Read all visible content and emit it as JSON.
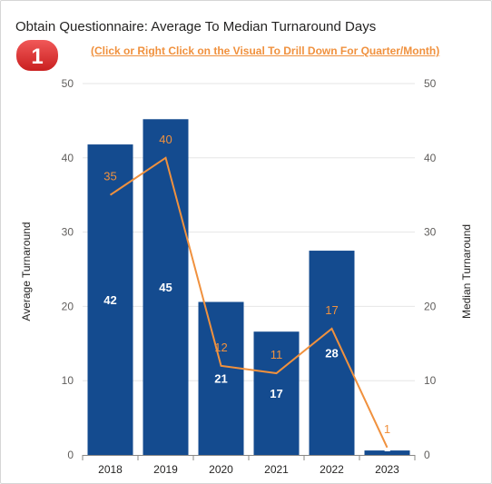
{
  "title": "Obtain Questionnaire: Average To Median Turnaround Days",
  "drill_link": "(Click or Right Click on the Visual To Drill Down For Quarter/Month)",
  "badge": "1",
  "colors": {
    "bar": "#144b8f",
    "line": "#f0913e",
    "badge": "#e02b2b",
    "grid": "#e6e6e6"
  },
  "chart_data": {
    "type": "bar",
    "categories": [
      "2018",
      "2019",
      "2020",
      "2021",
      "2022",
      "2023"
    ],
    "series": [
      {
        "name": "Average Turnaround",
        "type": "bar",
        "axis": "left",
        "values": [
          41.8,
          45.2,
          20.6,
          16.6,
          27.5,
          0.6
        ],
        "labels": [
          "42",
          "45",
          "21",
          "17",
          "28",
          "1"
        ]
      },
      {
        "name": "Median Turnaround",
        "type": "line",
        "axis": "right",
        "values": [
          35,
          40,
          12,
          11,
          17,
          1
        ],
        "labels": [
          "35",
          "40",
          "12",
          "11",
          "17",
          "1"
        ]
      }
    ],
    "ylabel": "Average Turnaround",
    "y2label": "Median Turnaround",
    "ylim": [
      0,
      50
    ],
    "y2lim": [
      0,
      50
    ],
    "yticks": [
      "0",
      "10",
      "20",
      "30",
      "40",
      "50"
    ],
    "y2ticks": [
      "0",
      "10",
      "20",
      "30",
      "40",
      "50"
    ],
    "grid": true
  }
}
